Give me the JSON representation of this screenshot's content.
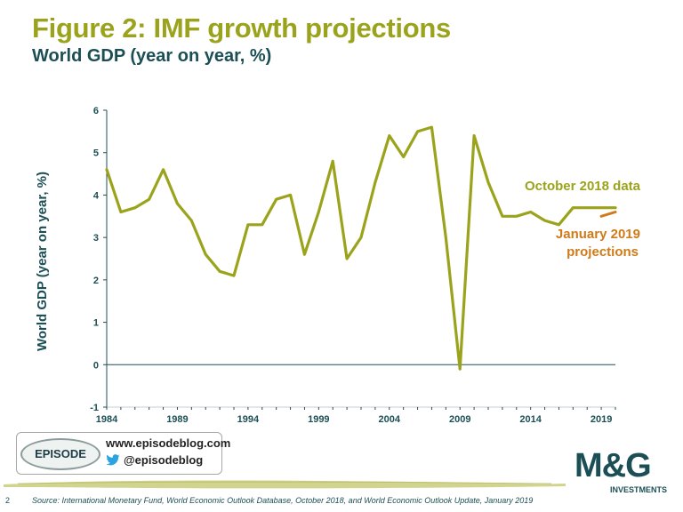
{
  "header": {
    "title": "Figure 2: IMF growth projections",
    "subtitle": "World GDP (year on year, %)"
  },
  "chart_data": {
    "type": "line",
    "ylabel": "World GDP (year on year, %)",
    "xlabel": "",
    "ylim": [
      -1,
      6
    ],
    "yticks": [
      "-1",
      "0",
      "1",
      "2",
      "3",
      "4",
      "5",
      "6"
    ],
    "xlim": [
      1984,
      2020
    ],
    "xticks": [
      "1984",
      "1989",
      "1994",
      "1999",
      "2004",
      "2009",
      "2014",
      "2019"
    ],
    "grid": false,
    "series": [
      {
        "name": "October 2018 data",
        "color": "#9aa31b",
        "x": [
          1984,
          1985,
          1986,
          1987,
          1988,
          1989,
          1990,
          1991,
          1992,
          1993,
          1994,
          1995,
          1996,
          1997,
          1998,
          1999,
          2000,
          2001,
          2002,
          2003,
          2004,
          2005,
          2006,
          2007,
          2008,
          2009,
          2010,
          2011,
          2012,
          2013,
          2014,
          2015,
          2016,
          2017,
          2018,
          2019,
          2020
        ],
        "values": [
          4.6,
          3.6,
          3.7,
          3.9,
          4.6,
          3.8,
          3.4,
          2.6,
          2.2,
          2.1,
          3.3,
          3.3,
          3.9,
          4.0,
          2.6,
          3.6,
          4.8,
          2.5,
          3.0,
          4.3,
          5.4,
          4.9,
          5.5,
          5.6,
          3.0,
          -0.1,
          5.4,
          4.3,
          3.5,
          3.5,
          3.6,
          3.4,
          3.3,
          3.7,
          3.7,
          3.7,
          3.7
        ]
      },
      {
        "name": "January 2019 projections",
        "color": "#d07a19",
        "x": [
          2019,
          2020
        ],
        "values": [
          3.5,
          3.6
        ]
      }
    ],
    "annotations": [
      "October 2018 data",
      "January 2019",
      "projections"
    ]
  },
  "footer": {
    "blog_url": "www.episodeblog.com",
    "twitter_handle": "@episodeblog",
    "episode_logo_text": "EPISODE",
    "mg_logo_text": "M&G",
    "mg_logo_subtext": "INVESTMENTS",
    "page_number": "2",
    "source": "Source: International Monetary Fund, World Economic Outlook Database, October 2018, and World Economic Outlook Update, January 2019"
  },
  "colors": {
    "title_green": "#9aa31b",
    "dark_teal": "#1b4f55",
    "projection_orange": "#d07a19",
    "twitter_blue": "#2aa3e0"
  },
  "icons": {
    "twitter": "twitter-bird-icon"
  }
}
